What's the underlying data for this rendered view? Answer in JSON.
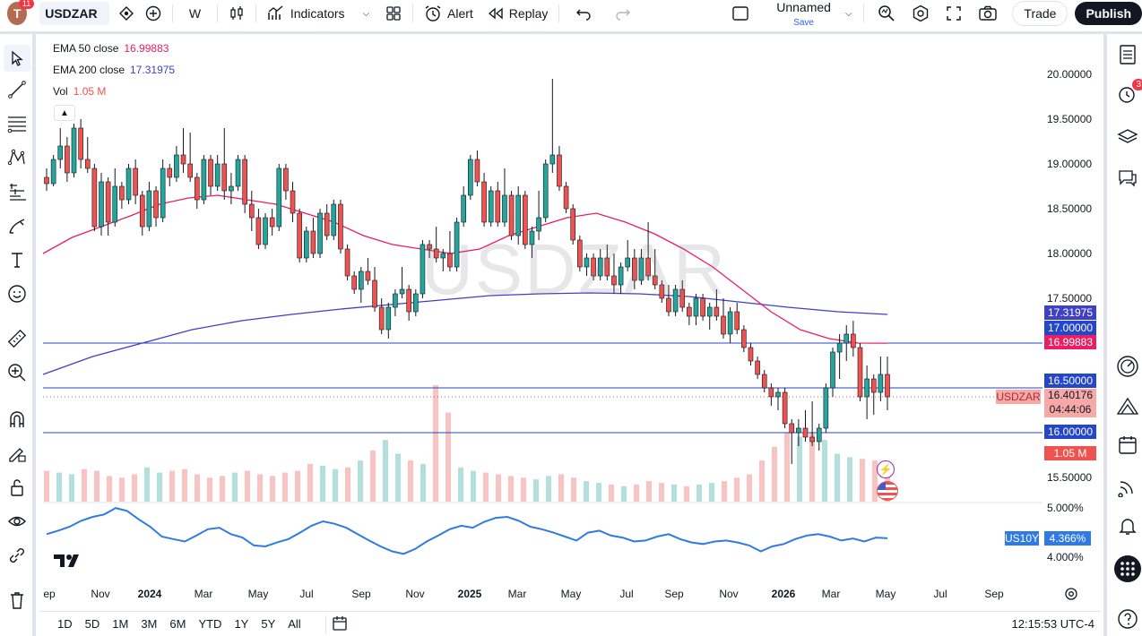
{
  "topbar": {
    "avatar_letter": "T",
    "avatar_badge": "11",
    "symbol": "USDZAR",
    "interval": "W",
    "indicators_label": "Indicators",
    "alert_label": "Alert",
    "replay_label": "Replay",
    "layout_name": "Unnamed",
    "layout_save": "Save",
    "trade_label": "Trade",
    "publish_label": "Publish"
  },
  "legend": {
    "ema50_label": "EMA 50 close",
    "ema50_value": "16.99883",
    "ema200_label": "EMA 200 close",
    "ema200_value": "17.31975",
    "vol_label": "Vol",
    "vol_value": "1.05 M"
  },
  "watermark": "USDZAR",
  "price_axis": [
    "20.00000",
    "19.50000",
    "19.00000",
    "18.50000",
    "18.00000",
    "17.50000",
    "15.50000"
  ],
  "lower_axis": [
    "5.000%",
    "4.000%"
  ],
  "price_labels": {
    "ema200": "17.31975",
    "level17": "17.00000",
    "ema50": "16.99883",
    "level165": "16.50000",
    "symbol_tag": "USDZAR",
    "last_price": "16.40176",
    "countdown": "04:44:06",
    "level16": "16.00000",
    "volume": "1.05 M",
    "us10y_tag": "US10Y",
    "us10y_value": "4.366%"
  },
  "time_axis": [
    {
      "label": "ep",
      "bold": false
    },
    {
      "label": "Nov",
      "bold": false
    },
    {
      "label": "2024",
      "bold": true
    },
    {
      "label": "Mar",
      "bold": false
    },
    {
      "label": "May",
      "bold": false
    },
    {
      "label": "Jul",
      "bold": false
    },
    {
      "label": "Sep",
      "bold": false
    },
    {
      "label": "Nov",
      "bold": false
    },
    {
      "label": "2025",
      "bold": true
    },
    {
      "label": "Mar",
      "bold": false
    },
    {
      "label": "May",
      "bold": false
    },
    {
      "label": "Jul",
      "bold": false
    },
    {
      "label": "Sep",
      "bold": false
    },
    {
      "label": "Nov",
      "bold": false
    },
    {
      "label": "2026",
      "bold": true
    },
    {
      "label": "Mar",
      "bold": false
    },
    {
      "label": "May",
      "bold": false
    },
    {
      "label": "Jul",
      "bold": false
    },
    {
      "label": "Sep",
      "bold": false
    }
  ],
  "ranges": [
    "1D",
    "5D",
    "1M",
    "3M",
    "6M",
    "YTD",
    "1Y",
    "5Y",
    "All"
  ],
  "clock": "12:15:53 UTC-4",
  "alerts_badge": "3",
  "colors": {
    "up": "#26a69a",
    "down": "#ef5350",
    "ema50": "#e91e63",
    "ema200": "#3f3fc8",
    "level": "#2446c8",
    "us10y": "#2f7ae5"
  },
  "chart_data": {
    "type": "candlestick",
    "symbol": "USDZAR",
    "interval": "W",
    "y_range": [
      15.4,
      20.1
    ],
    "horizontal_levels": [
      17.0,
      16.5,
      16.0
    ],
    "ohlc": [
      [
        18.85,
        18.95,
        18.7,
        18.78
      ],
      [
        18.78,
        19.1,
        18.75,
        19.05
      ],
      [
        19.05,
        19.4,
        18.95,
        19.2
      ],
      [
        19.2,
        19.3,
        18.8,
        18.9
      ],
      [
        18.9,
        19.45,
        18.85,
        19.4
      ],
      [
        19.4,
        19.5,
        18.95,
        19.05
      ],
      [
        19.05,
        19.3,
        18.9,
        18.95
      ],
      [
        18.95,
        19.0,
        18.25,
        18.3
      ],
      [
        18.3,
        18.9,
        18.2,
        18.8
      ],
      [
        18.8,
        18.85,
        18.2,
        18.35
      ],
      [
        18.35,
        18.95,
        18.3,
        18.75
      ],
      [
        18.75,
        18.8,
        18.5,
        18.6
      ],
      [
        18.6,
        19.0,
        18.55,
        18.95
      ],
      [
        18.95,
        19.05,
        18.55,
        18.65
      ],
      [
        18.65,
        18.7,
        18.2,
        18.3
      ],
      [
        18.3,
        18.8,
        18.25,
        18.7
      ],
      [
        18.7,
        18.75,
        18.3,
        18.4
      ],
      [
        18.4,
        19.05,
        18.35,
        18.95
      ],
      [
        18.95,
        19.0,
        18.75,
        18.85
      ],
      [
        18.85,
        19.2,
        18.8,
        19.1
      ],
      [
        19.1,
        19.4,
        18.9,
        19.0
      ],
      [
        19.0,
        19.35,
        18.8,
        18.85
      ],
      [
        18.85,
        18.9,
        18.5,
        18.6
      ],
      [
        18.6,
        19.1,
        18.55,
        19.05
      ],
      [
        19.05,
        19.1,
        18.65,
        18.75
      ],
      [
        18.75,
        19.1,
        18.7,
        19.0
      ],
      [
        19.0,
        19.4,
        18.6,
        18.7
      ],
      [
        18.7,
        18.9,
        18.55,
        18.75
      ],
      [
        18.75,
        19.1,
        18.7,
        19.05
      ],
      [
        19.05,
        19.1,
        18.45,
        18.55
      ],
      [
        18.55,
        18.7,
        18.25,
        18.4
      ],
      [
        18.4,
        18.5,
        18.05,
        18.1
      ],
      [
        18.1,
        18.45,
        18.05,
        18.4
      ],
      [
        18.4,
        18.5,
        18.2,
        18.3
      ],
      [
        18.3,
        19.0,
        18.25,
        18.95
      ],
      [
        18.95,
        19.0,
        18.6,
        18.7
      ],
      [
        18.7,
        18.8,
        18.35,
        18.45
      ],
      [
        18.45,
        18.5,
        17.9,
        17.95
      ],
      [
        17.95,
        18.3,
        17.9,
        18.25
      ],
      [
        18.25,
        18.4,
        17.95,
        18.0
      ],
      [
        18.0,
        18.5,
        17.95,
        18.45
      ],
      [
        18.45,
        18.55,
        18.15,
        18.2
      ],
      [
        18.2,
        18.6,
        18.15,
        18.55
      ],
      [
        18.55,
        18.6,
        18.0,
        18.05
      ],
      [
        18.05,
        18.1,
        17.7,
        17.75
      ],
      [
        17.75,
        17.8,
        17.55,
        17.6
      ],
      [
        17.6,
        17.85,
        17.45,
        17.8
      ],
      [
        17.8,
        17.95,
        17.65,
        17.7
      ],
      [
        17.7,
        17.85,
        17.35,
        17.4
      ],
      [
        17.4,
        17.5,
        17.1,
        17.15
      ],
      [
        17.15,
        17.45,
        17.05,
        17.4
      ],
      [
        17.4,
        17.6,
        17.3,
        17.55
      ],
      [
        17.55,
        17.85,
        17.5,
        17.6
      ],
      [
        17.6,
        17.65,
        17.25,
        17.35
      ],
      [
        17.35,
        17.6,
        17.3,
        17.55
      ],
      [
        17.55,
        18.15,
        17.5,
        18.1
      ],
      [
        18.1,
        18.15,
        17.95,
        18.05
      ],
      [
        18.05,
        18.3,
        17.9,
        17.95
      ],
      [
        17.95,
        18.05,
        17.8,
        18.0
      ],
      [
        18.0,
        18.25,
        17.8,
        17.85
      ],
      [
        17.85,
        18.4,
        17.8,
        18.35
      ],
      [
        18.35,
        18.75,
        18.3,
        18.65
      ],
      [
        18.65,
        19.1,
        18.6,
        19.05
      ],
      [
        19.05,
        19.15,
        18.75,
        18.8
      ],
      [
        18.8,
        18.9,
        18.3,
        18.35
      ],
      [
        18.35,
        18.75,
        18.3,
        18.7
      ],
      [
        18.7,
        18.8,
        18.3,
        18.35
      ],
      [
        18.35,
        18.95,
        18.3,
        18.65
      ],
      [
        18.65,
        18.7,
        18.15,
        18.2
      ],
      [
        18.2,
        18.75,
        18.1,
        18.65
      ],
      [
        18.65,
        18.7,
        18.05,
        18.1
      ],
      [
        18.1,
        18.3,
        17.95,
        18.25
      ],
      [
        18.25,
        18.7,
        18.15,
        18.4
      ],
      [
        18.4,
        19.05,
        18.35,
        19.0
      ],
      [
        19.0,
        19.95,
        18.9,
        19.1
      ],
      [
        19.1,
        19.2,
        18.7,
        18.75
      ],
      [
        18.75,
        18.8,
        18.45,
        18.5
      ],
      [
        18.5,
        18.55,
        18.1,
        18.15
      ],
      [
        18.15,
        18.2,
        17.8,
        17.85
      ],
      [
        17.85,
        18.0,
        17.75,
        17.95
      ],
      [
        17.95,
        18.0,
        17.7,
        17.75
      ],
      [
        17.75,
        18.05,
        17.7,
        17.95
      ],
      [
        17.95,
        18.1,
        17.7,
        17.75
      ],
      [
        17.75,
        18.0,
        17.55,
        17.65
      ],
      [
        17.65,
        17.9,
        17.55,
        17.85
      ],
      [
        17.85,
        18.15,
        17.8,
        17.95
      ],
      [
        17.95,
        18.05,
        17.6,
        17.7
      ],
      [
        17.7,
        18.05,
        17.65,
        17.95
      ],
      [
        17.95,
        18.35,
        17.7,
        17.75
      ],
      [
        17.75,
        18.05,
        17.6,
        17.65
      ],
      [
        17.65,
        17.7,
        17.45,
        17.5
      ],
      [
        17.5,
        17.65,
        17.3,
        17.35
      ],
      [
        17.35,
        17.65,
        17.3,
        17.6
      ],
      [
        17.6,
        17.7,
        17.35,
        17.4
      ],
      [
        17.4,
        17.45,
        17.2,
        17.3
      ],
      [
        17.3,
        17.55,
        17.2,
        17.5
      ],
      [
        17.5,
        17.55,
        17.25,
        17.3
      ],
      [
        17.3,
        17.45,
        17.15,
        17.4
      ],
      [
        17.4,
        17.6,
        17.25,
        17.3
      ],
      [
        17.3,
        17.5,
        17.05,
        17.1
      ],
      [
        17.1,
        17.4,
        17.0,
        17.35
      ],
      [
        17.35,
        17.45,
        17.1,
        17.15
      ],
      [
        17.15,
        17.2,
        16.9,
        16.95
      ],
      [
        16.95,
        17.0,
        16.75,
        16.8
      ],
      [
        16.8,
        16.85,
        16.6,
        16.65
      ],
      [
        16.65,
        16.7,
        16.45,
        16.5
      ],
      [
        16.5,
        16.55,
        16.3,
        16.4
      ],
      [
        16.4,
        16.5,
        16.25,
        16.45
      ],
      [
        16.45,
        16.5,
        16.05,
        16.1
      ],
      [
        16.1,
        16.15,
        15.65,
        16.0
      ],
      [
        16.0,
        16.15,
        15.85,
        16.05
      ],
      [
        16.05,
        16.25,
        15.9,
        15.95
      ],
      [
        15.95,
        16.35,
        15.85,
        15.9
      ],
      [
        15.9,
        16.1,
        15.8,
        16.05
      ],
      [
        16.05,
        16.55,
        16.0,
        16.5
      ],
      [
        16.5,
        16.95,
        16.4,
        16.9
      ],
      [
        16.9,
        17.1,
        16.6,
        17.0
      ],
      [
        17.0,
        17.2,
        16.8,
        17.1
      ],
      [
        17.1,
        17.25,
        16.85,
        16.95
      ],
      [
        16.95,
        17.0,
        16.35,
        16.4
      ],
      [
        16.4,
        16.75,
        16.15,
        16.6
      ],
      [
        16.6,
        16.65,
        16.2,
        16.45
      ],
      [
        16.45,
        16.85,
        16.35,
        16.65
      ],
      [
        16.65,
        16.85,
        16.25,
        16.4
      ]
    ],
    "ema50": [
      18.0,
      18.18,
      18.3,
      18.42,
      18.55,
      18.62,
      18.65,
      18.6,
      18.55,
      18.45,
      18.35,
      18.2,
      18.1,
      18.05,
      18.0,
      18.05,
      18.2,
      18.3,
      18.4,
      18.45,
      18.35,
      18.22,
      18.05,
      17.85,
      17.6,
      17.35,
      17.15,
      17.05,
      17.0,
      16.99883
    ],
    "ema200": [
      16.65,
      16.85,
      17.0,
      17.15,
      17.25,
      17.32,
      17.38,
      17.43,
      17.48,
      17.53,
      17.55,
      17.56,
      17.55,
      17.52,
      17.46,
      17.4,
      17.35,
      17.31975
    ],
    "volume": [
      0.9,
      0.85,
      0.8,
      0.95,
      0.9,
      0.75,
      0.7,
      0.8,
      1.0,
      0.85,
      0.9,
      0.95,
      0.8,
      0.7,
      0.75,
      0.85,
      0.9,
      0.8,
      0.75,
      0.85,
      0.9,
      1.1,
      1.05,
      0.95,
      1.0,
      1.2,
      1.5,
      1.8,
      1.4,
      1.2,
      1.1,
      3.4,
      2.6,
      1.0,
      0.9,
      0.85,
      0.8,
      0.75,
      0.7,
      0.65,
      0.75,
      0.8,
      0.7,
      0.6,
      0.55,
      0.5,
      0.45,
      0.5,
      0.6,
      0.55,
      0.5,
      0.45,
      0.5,
      0.55,
      0.6,
      0.7,
      0.8,
      1.2,
      1.6,
      2.0,
      1.9,
      2.0,
      1.8,
      1.4,
      1.3,
      1.25,
      1.2,
      1.05
    ],
    "us10y": [
      4.45,
      4.52,
      4.6,
      4.72,
      4.8,
      4.85,
      4.98,
      4.92,
      4.75,
      4.6,
      4.4,
      4.35,
      4.3,
      4.42,
      4.55,
      4.58,
      4.45,
      4.38,
      4.22,
      4.2,
      4.28,
      4.35,
      4.48,
      4.62,
      4.71,
      4.66,
      4.58,
      4.45,
      4.32,
      4.2,
      4.1,
      4.05,
      4.15,
      4.3,
      4.42,
      4.55,
      4.62,
      4.58,
      4.7,
      4.78,
      4.8,
      4.72,
      4.6,
      4.55,
      4.48,
      4.4,
      4.32,
      4.48,
      4.52,
      4.42,
      4.38,
      4.3,
      4.32,
      4.4,
      4.45,
      4.35,
      4.28,
      4.25,
      4.3,
      4.32,
      4.28,
      4.22,
      4.1,
      4.2,
      4.25,
      4.35,
      4.42,
      4.45,
      4.4,
      4.32,
      4.36,
      4.3,
      4.38,
      4.366
    ]
  }
}
